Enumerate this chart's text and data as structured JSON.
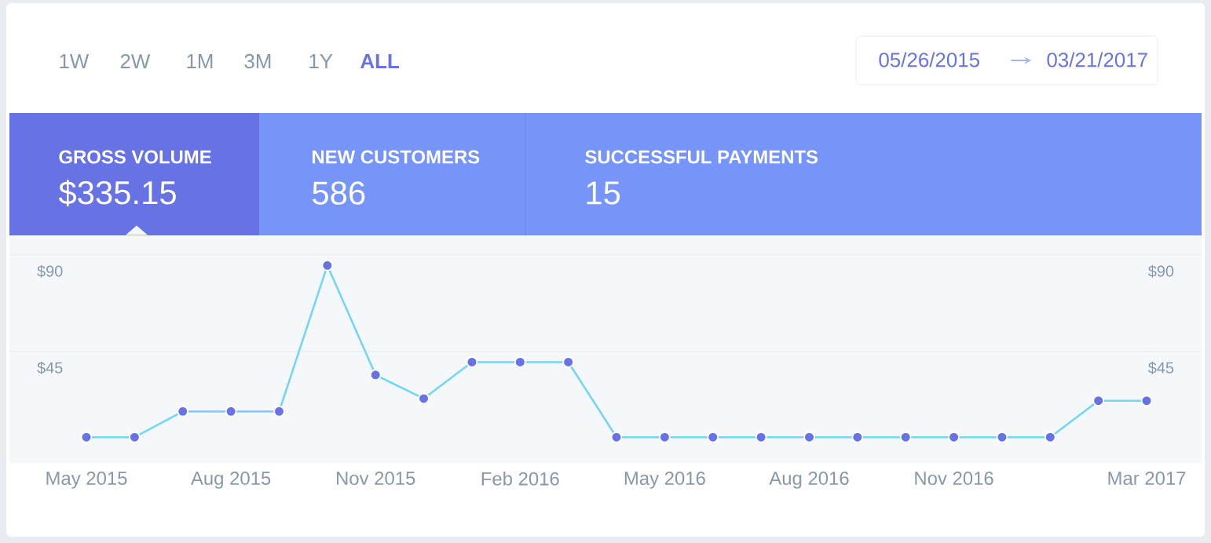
{
  "chart_data": [
    {
      "type": "other",
      "annotations": [
        "1W",
        "2W",
        "1M",
        "3M",
        "1Y",
        "ALL",
        "05/26/2015",
        "03/21/2017",
        "GROSS VOLUME",
        "$335.15",
        "NEW CUSTOMERS",
        "586",
        "SUCCESSFUL PAYMENTS",
        "15"
      ]
    },
    {
      "type": "line",
      "categories": [
        "May 2015",
        null,
        null,
        "Aug 2015",
        null,
        null,
        "Nov 2015",
        null,
        null,
        "Feb 2016",
        null,
        null,
        "May 2016",
        null,
        null,
        "Aug 2016",
        null,
        null,
        "Nov 2016",
        null,
        null,
        null,
        "Mar 2017"
      ],
      "series": [
        {
          "color": "#75d5f5",
          "values": [
            5,
            5,
            17,
            17,
            17,
            85,
            34,
            23,
            40,
            40,
            40,
            5,
            5,
            5,
            5,
            5,
            5,
            5,
            5,
            5,
            5,
            22,
            22
          ]
        }
      ],
      "ylim": [
        -7,
        99
      ],
      "yticks": [
        {
          "value": 45,
          "label": "$45"
        },
        {
          "value": 90,
          "label": "$90"
        }
      ],
      "y2lim": [
        -7,
        99
      ],
      "y2ticks": [
        {
          "value": 45,
          "label": "$45"
        },
        {
          "value": 90,
          "label": "$90"
        }
      ],
      "grid": "y",
      "marker": "circle",
      "line_style": "solid"
    }
  ]
}
